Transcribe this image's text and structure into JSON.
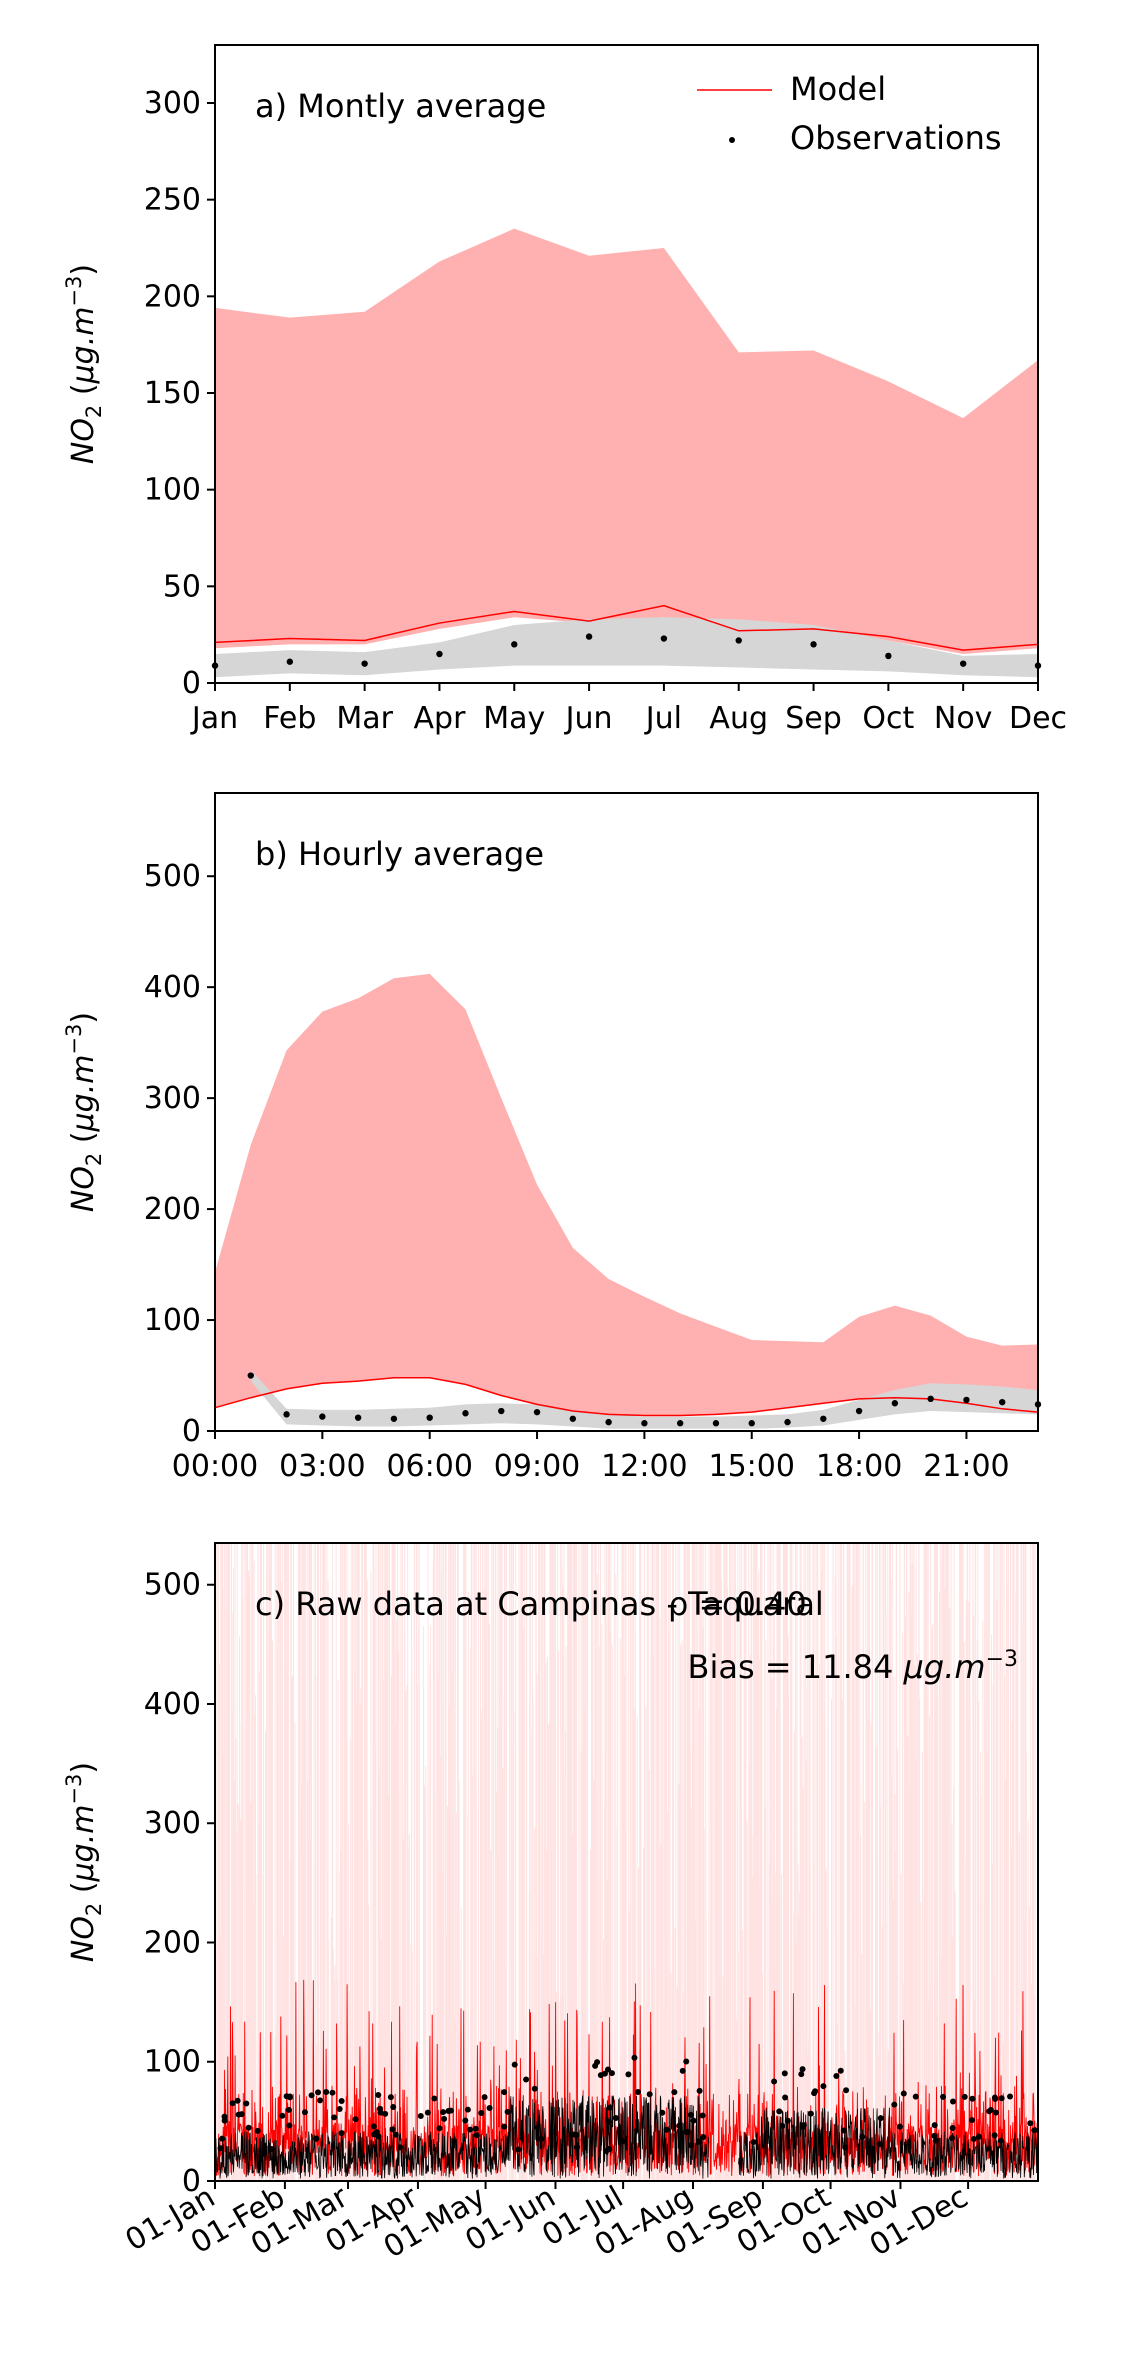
{
  "chart_data": [
    {
      "type": "line",
      "title": "a) Montly average",
      "ylabel": "NO$_2$ (μg.m$^{-3}$)",
      "ylim": [
        0,
        330
      ],
      "yticks": [
        0,
        50,
        100,
        150,
        200,
        250,
        300
      ],
      "categories": [
        "Jan",
        "Feb",
        "Mar",
        "Apr",
        "May",
        "Jun",
        "Jul",
        "Aug",
        "Sep",
        "Oct",
        "Nov",
        "Dec"
      ],
      "legend": {
        "placement": "top-right",
        "entries": [
          "Model",
          "Observations"
        ]
      },
      "model": {
        "name": "Model",
        "mean": [
          21,
          23,
          22,
          31,
          37,
          32,
          40,
          27,
          28,
          24,
          17,
          20
        ],
        "band_low": [
          18,
          20,
          20,
          28,
          34,
          31,
          34,
          27,
          27,
          22,
          15,
          18
        ],
        "band_high": [
          194,
          189,
          192,
          218,
          235,
          221,
          225,
          171,
          172,
          156,
          137,
          167
        ]
      },
      "observations": {
        "name": "Observations",
        "mean": [
          9,
          11,
          10,
          15,
          20,
          24,
          23,
          22,
          20,
          14,
          10,
          9
        ],
        "band_low": [
          3,
          5,
          4,
          7,
          9,
          9,
          9,
          8,
          7,
          6,
          4,
          3
        ],
        "band_high": [
          15,
          17,
          16,
          21,
          30,
          33,
          34,
          33,
          30,
          22,
          14,
          15
        ]
      },
      "colors": {
        "model_line": "#ff0000",
        "model_band": "#ffb0b0",
        "obs_band": "#d6d6d6",
        "obs_points": "#000000"
      }
    },
    {
      "type": "line",
      "title": "b) Hourly average",
      "ylabel": "NO$_2$ (μg.m$^{-3}$)",
      "ylim": [
        0,
        575
      ],
      "xlim": [
        0,
        23
      ],
      "yticks": [
        0,
        100,
        200,
        300,
        400,
        500
      ],
      "xticks": [
        0,
        3,
        6,
        9,
        12,
        15,
        18,
        21
      ],
      "xtick_labels": [
        "00:00",
        "03:00",
        "06:00",
        "09:00",
        "12:00",
        "15:00",
        "18:00",
        "21:00"
      ],
      "hours": [
        0,
        1,
        2,
        3,
        4,
        5,
        6,
        7,
        8,
        9,
        10,
        11,
        12,
        13,
        14,
        15,
        16,
        17,
        18,
        19,
        20,
        21,
        22,
        23
      ],
      "model": {
        "name": "Model",
        "mean": [
          21,
          30,
          38,
          43,
          45,
          48,
          48,
          42,
          32,
          24,
          18,
          15,
          14,
          14,
          15,
          17,
          21,
          25,
          29,
          30,
          29,
          25,
          20,
          17
        ],
        "band_high": [
          143,
          258,
          343,
          378,
          390,
          408,
          412,
          380,
          300,
          222,
          165,
          137,
          121,
          106,
          94,
          82,
          81,
          80,
          103,
          113,
          104,
          85,
          77,
          78
        ]
      },
      "observations": {
        "name": "Observations",
        "mean": [
          null,
          50,
          15,
          13,
          12,
          11,
          12,
          16,
          18,
          17,
          11,
          8,
          7,
          7,
          7,
          7,
          8,
          11,
          18,
          25,
          29,
          28,
          26,
          24
        ],
        "band_low": [
          null,
          45,
          6,
          5,
          4,
          4,
          5,
          6,
          7,
          6,
          4,
          2,
          2,
          2,
          2,
          2,
          3,
          5,
          10,
          15,
          18,
          17,
          16,
          15
        ],
        "band_high": [
          null,
          55,
          20,
          19,
          19,
          20,
          21,
          24,
          25,
          24,
          18,
          15,
          13,
          13,
          13,
          14,
          15,
          19,
          28,
          37,
          43,
          42,
          40,
          37
        ]
      },
      "colors": {
        "model_line": "#ff0000",
        "model_band": "#ffb0b0",
        "obs_band": "#d6d6d6",
        "obs_points": "#000000"
      }
    },
    {
      "type": "line",
      "title": "c) Raw data at Campinas - Taquaral",
      "annotations": [
        "ρ = 0.40",
        "Bias = 11.84 μg.m$^{-3}$"
      ],
      "ylabel": "NO$_2$ (μg.m$^{-3}$)",
      "ylim": [
        0,
        535
      ],
      "xlim": [
        "01-Jan",
        "31-Dec"
      ],
      "yticks": [
        0,
        100,
        200,
        300,
        400,
        500
      ],
      "xtick_labels": [
        "01-Jan",
        "01-Feb",
        "01-Mar",
        "01-Apr",
        "01-May",
        "01-Jun",
        "01-Jul",
        "01-Aug",
        "01-Sep",
        "01-Oct",
        "01-Nov",
        "01-Dec"
      ],
      "colors": {
        "model_line": "#ff0000",
        "model_band": "#ffb0b0",
        "obs_line": "#000000"
      }
    }
  ]
}
